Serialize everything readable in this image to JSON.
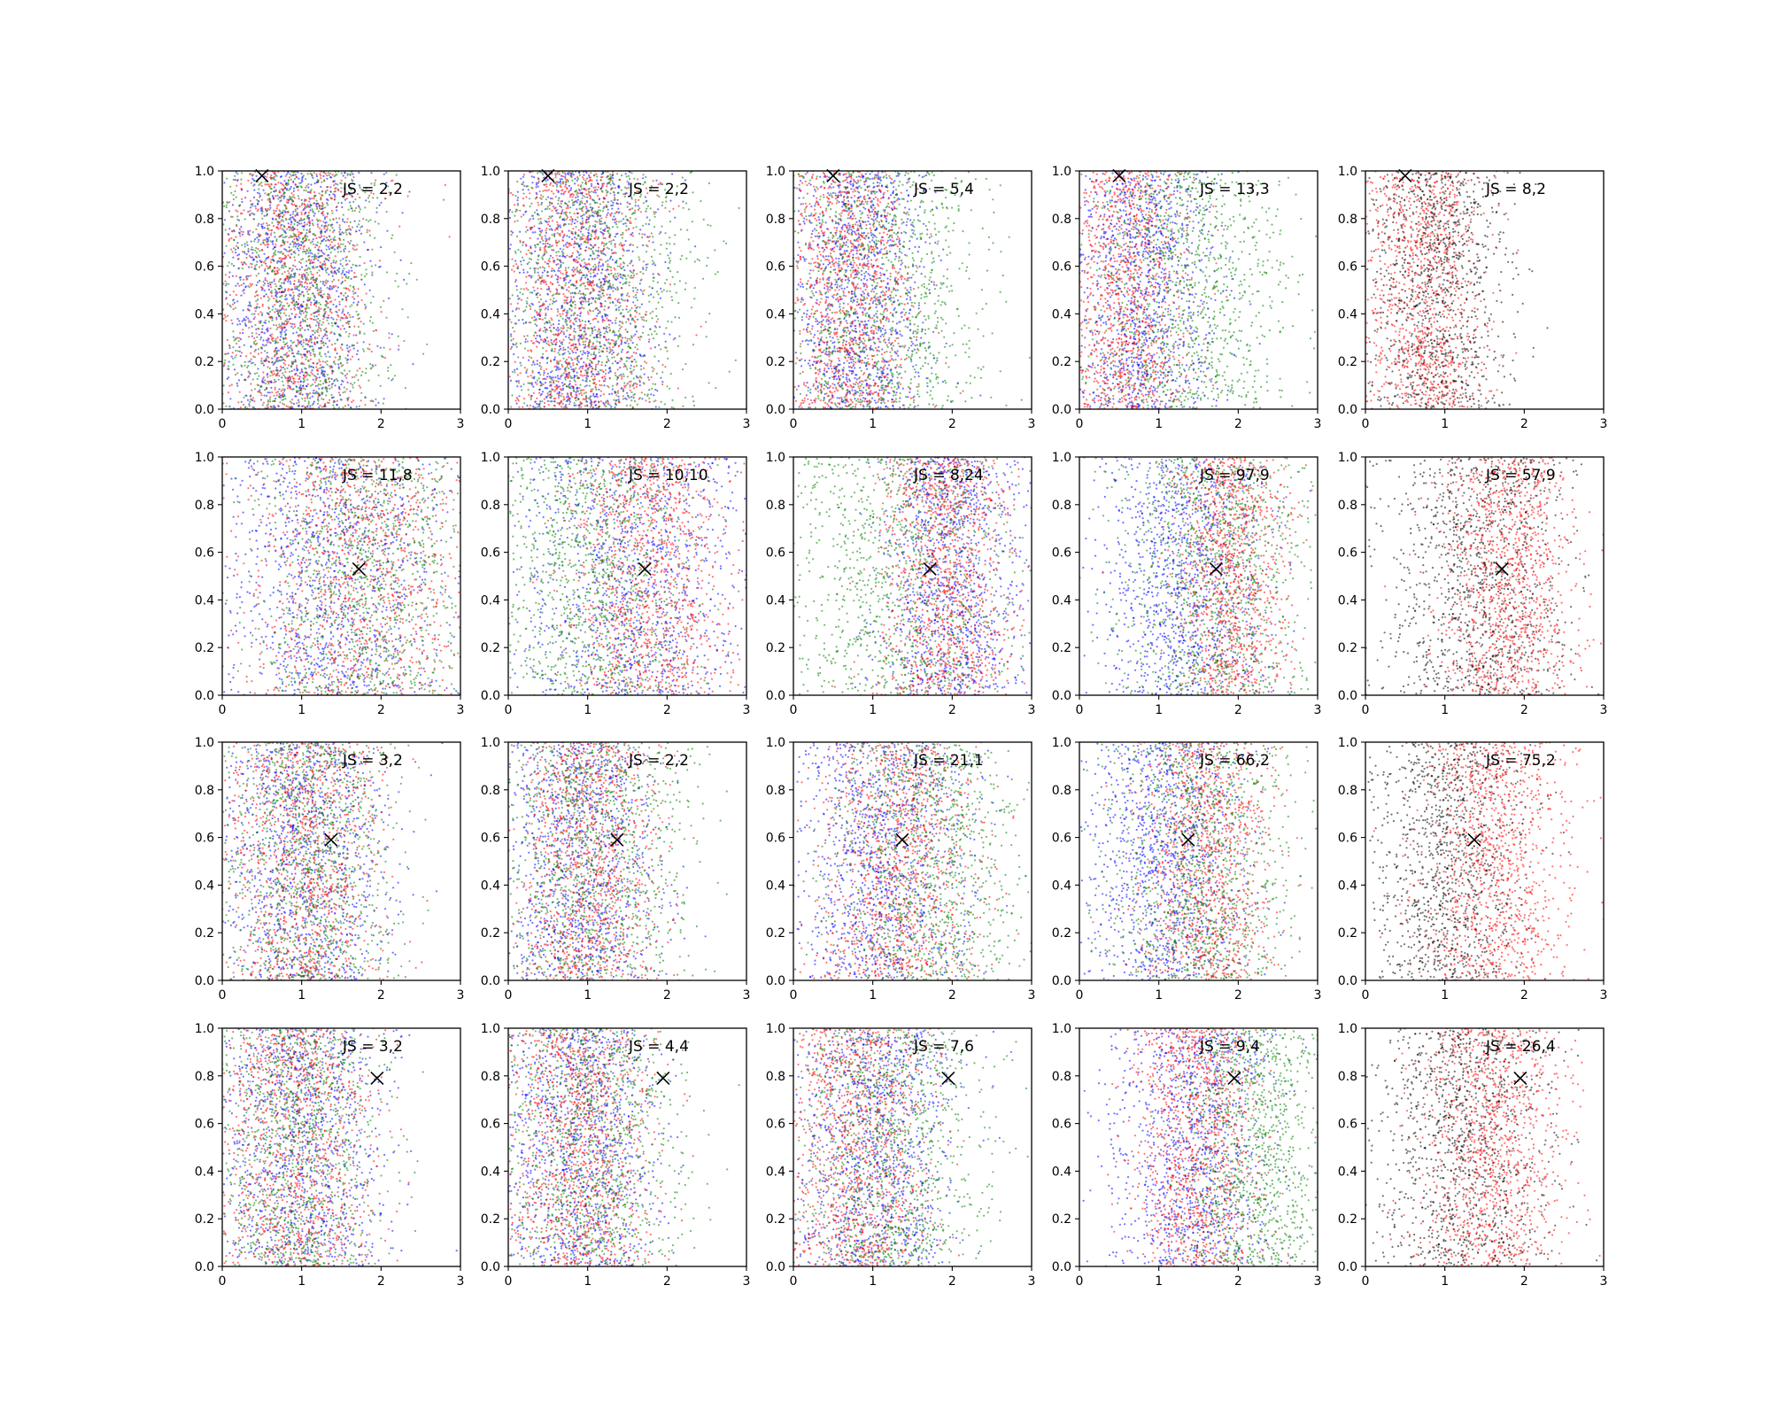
{
  "colors": {
    "blue": "#0000ff",
    "red": "#ff0000",
    "green": "#008000",
    "black": "#000000"
  },
  "chart_data": {
    "type": "scatter",
    "grid": false,
    "xlim": [
      0,
      3
    ],
    "ylim": [
      0,
      1
    ],
    "xticks": [
      "0",
      "1",
      "2",
      "3"
    ],
    "yticks": [
      "0.0",
      "0.2",
      "0.4",
      "0.6",
      "0.8",
      "1.0"
    ],
    "rows": 4,
    "cols": 5,
    "panels": [
      {
        "label": "JS = 2,2",
        "marker": [
          0.5,
          0.98
        ],
        "series": [
          {
            "color": "blue",
            "center": 0.9,
            "spread": 0.5
          },
          {
            "color": "red",
            "center": 0.9,
            "spread": 0.5
          },
          {
            "color": "green",
            "center": 1.0,
            "spread": 0.55
          }
        ]
      },
      {
        "label": "JS = 2,2",
        "marker": [
          0.5,
          0.98
        ],
        "series": [
          {
            "color": "blue",
            "center": 0.9,
            "spread": 0.5
          },
          {
            "color": "red",
            "center": 0.9,
            "spread": 0.45
          },
          {
            "color": "green",
            "center": 1.1,
            "spread": 0.65
          }
        ]
      },
      {
        "label": "JS = 5,4",
        "marker": [
          0.5,
          0.98
        ],
        "series": [
          {
            "color": "blue",
            "center": 0.8,
            "spread": 0.45
          },
          {
            "color": "red",
            "center": 0.7,
            "spread": 0.4
          },
          {
            "color": "green",
            "center": 1.1,
            "spread": 0.65
          }
        ]
      },
      {
        "label": "JS = 13,3",
        "marker": [
          0.5,
          0.98
        ],
        "series": [
          {
            "color": "blue",
            "center": 0.8,
            "spread": 0.45
          },
          {
            "color": "red",
            "center": 0.6,
            "spread": 0.4
          },
          {
            "color": "green",
            "center": 1.3,
            "spread": 0.65
          }
        ]
      },
      {
        "label": "JS = 8,2",
        "marker": [
          0.5,
          0.98
        ],
        "series": [
          {
            "color": "red",
            "center": 0.7,
            "spread": 0.4
          },
          {
            "color": "black",
            "center": 0.9,
            "spread": 0.45
          }
        ]
      },
      {
        "label": "JS = 11,8",
        "marker": [
          1.72,
          0.53
        ],
        "series": [
          {
            "color": "blue",
            "center": 1.4,
            "spread": 0.75
          },
          {
            "color": "red",
            "center": 1.7,
            "spread": 0.7
          },
          {
            "color": "green",
            "center": 1.8,
            "spread": 0.7
          }
        ]
      },
      {
        "label": "JS = 10,10",
        "marker": [
          1.72,
          0.53
        ],
        "series": [
          {
            "color": "blue",
            "center": 1.6,
            "spread": 0.75
          },
          {
            "color": "red",
            "center": 1.8,
            "spread": 0.5
          },
          {
            "color": "green",
            "center": 1.0,
            "spread": 0.65
          }
        ]
      },
      {
        "label": "JS = 8,24",
        "marker": [
          1.72,
          0.53
        ],
        "series": [
          {
            "color": "blue",
            "center": 2.0,
            "spread": 0.45
          },
          {
            "color": "red",
            "center": 1.9,
            "spread": 0.4
          },
          {
            "color": "green",
            "center": 1.3,
            "spread": 0.75
          }
        ]
      },
      {
        "label": "JS = 97,9",
        "marker": [
          1.72,
          0.53
        ],
        "series": [
          {
            "color": "blue",
            "center": 1.3,
            "spread": 0.55
          },
          {
            "color": "red",
            "center": 1.9,
            "spread": 0.35
          },
          {
            "color": "green",
            "center": 1.7,
            "spread": 0.6
          }
        ]
      },
      {
        "label": "JS = 57,9",
        "marker": [
          1.72,
          0.53
        ],
        "series": [
          {
            "color": "red",
            "center": 1.8,
            "spread": 0.4
          },
          {
            "color": "black",
            "center": 1.4,
            "spread": 0.6
          }
        ]
      },
      {
        "label": "JS = 3,2",
        "marker": [
          1.37,
          0.59
        ],
        "series": [
          {
            "color": "blue",
            "center": 1.0,
            "spread": 0.55
          },
          {
            "color": "red",
            "center": 1.0,
            "spread": 0.5
          },
          {
            "color": "green",
            "center": 1.1,
            "spread": 0.55
          }
        ]
      },
      {
        "label": "JS = 2,2",
        "marker": [
          1.37,
          0.59
        ],
        "series": [
          {
            "color": "blue",
            "center": 0.9,
            "spread": 0.5
          },
          {
            "color": "red",
            "center": 1.0,
            "spread": 0.45
          },
          {
            "color": "green",
            "center": 1.1,
            "spread": 0.6
          }
        ]
      },
      {
        "label": "JS = 21,1",
        "marker": [
          1.37,
          0.59
        ],
        "series": [
          {
            "color": "blue",
            "center": 1.1,
            "spread": 0.55
          },
          {
            "color": "red",
            "center": 1.3,
            "spread": 0.5
          },
          {
            "color": "green",
            "center": 1.7,
            "spread": 0.6
          }
        ]
      },
      {
        "label": "JS = 66,2",
        "marker": [
          1.37,
          0.59
        ],
        "series": [
          {
            "color": "blue",
            "center": 1.1,
            "spread": 0.5
          },
          {
            "color": "red",
            "center": 1.6,
            "spread": 0.4
          },
          {
            "color": "green",
            "center": 1.5,
            "spread": 0.6
          }
        ]
      },
      {
        "label": "JS = 75,2",
        "marker": [
          1.37,
          0.59
        ],
        "series": [
          {
            "color": "red",
            "center": 1.6,
            "spread": 0.45
          },
          {
            "color": "black",
            "center": 1.0,
            "spread": 0.5
          }
        ]
      },
      {
        "label": "JS = 3,2",
        "marker": [
          1.95,
          0.79
        ],
        "series": [
          {
            "color": "blue",
            "center": 1.0,
            "spread": 0.55
          },
          {
            "color": "red",
            "center": 0.9,
            "spread": 0.5
          },
          {
            "color": "green",
            "center": 0.9,
            "spread": 0.55
          }
        ]
      },
      {
        "label": "JS = 4,4",
        "marker": [
          1.95,
          0.79
        ],
        "series": [
          {
            "color": "blue",
            "center": 0.9,
            "spread": 0.5
          },
          {
            "color": "red",
            "center": 0.9,
            "spread": 0.45
          },
          {
            "color": "green",
            "center": 1.0,
            "spread": 0.6
          }
        ]
      },
      {
        "label": "JS = 7,6",
        "marker": [
          1.95,
          0.79
        ],
        "series": [
          {
            "color": "blue",
            "center": 1.0,
            "spread": 0.5
          },
          {
            "color": "red",
            "center": 0.8,
            "spread": 0.45
          },
          {
            "color": "green",
            "center": 1.2,
            "spread": 0.6
          }
        ]
      },
      {
        "label": "JS = 9,4",
        "marker": [
          1.95,
          0.79
        ],
        "series": [
          {
            "color": "blue",
            "center": 1.4,
            "spread": 0.5
          },
          {
            "color": "red",
            "center": 1.5,
            "spread": 0.4
          },
          {
            "color": "green",
            "center": 2.2,
            "spread": 0.45
          }
        ]
      },
      {
        "label": "JS = 26,4",
        "marker": [
          1.95,
          0.79
        ],
        "series": [
          {
            "color": "red",
            "center": 1.6,
            "spread": 0.45
          },
          {
            "color": "black",
            "center": 1.2,
            "spread": 0.55
          }
        ]
      }
    ]
  }
}
